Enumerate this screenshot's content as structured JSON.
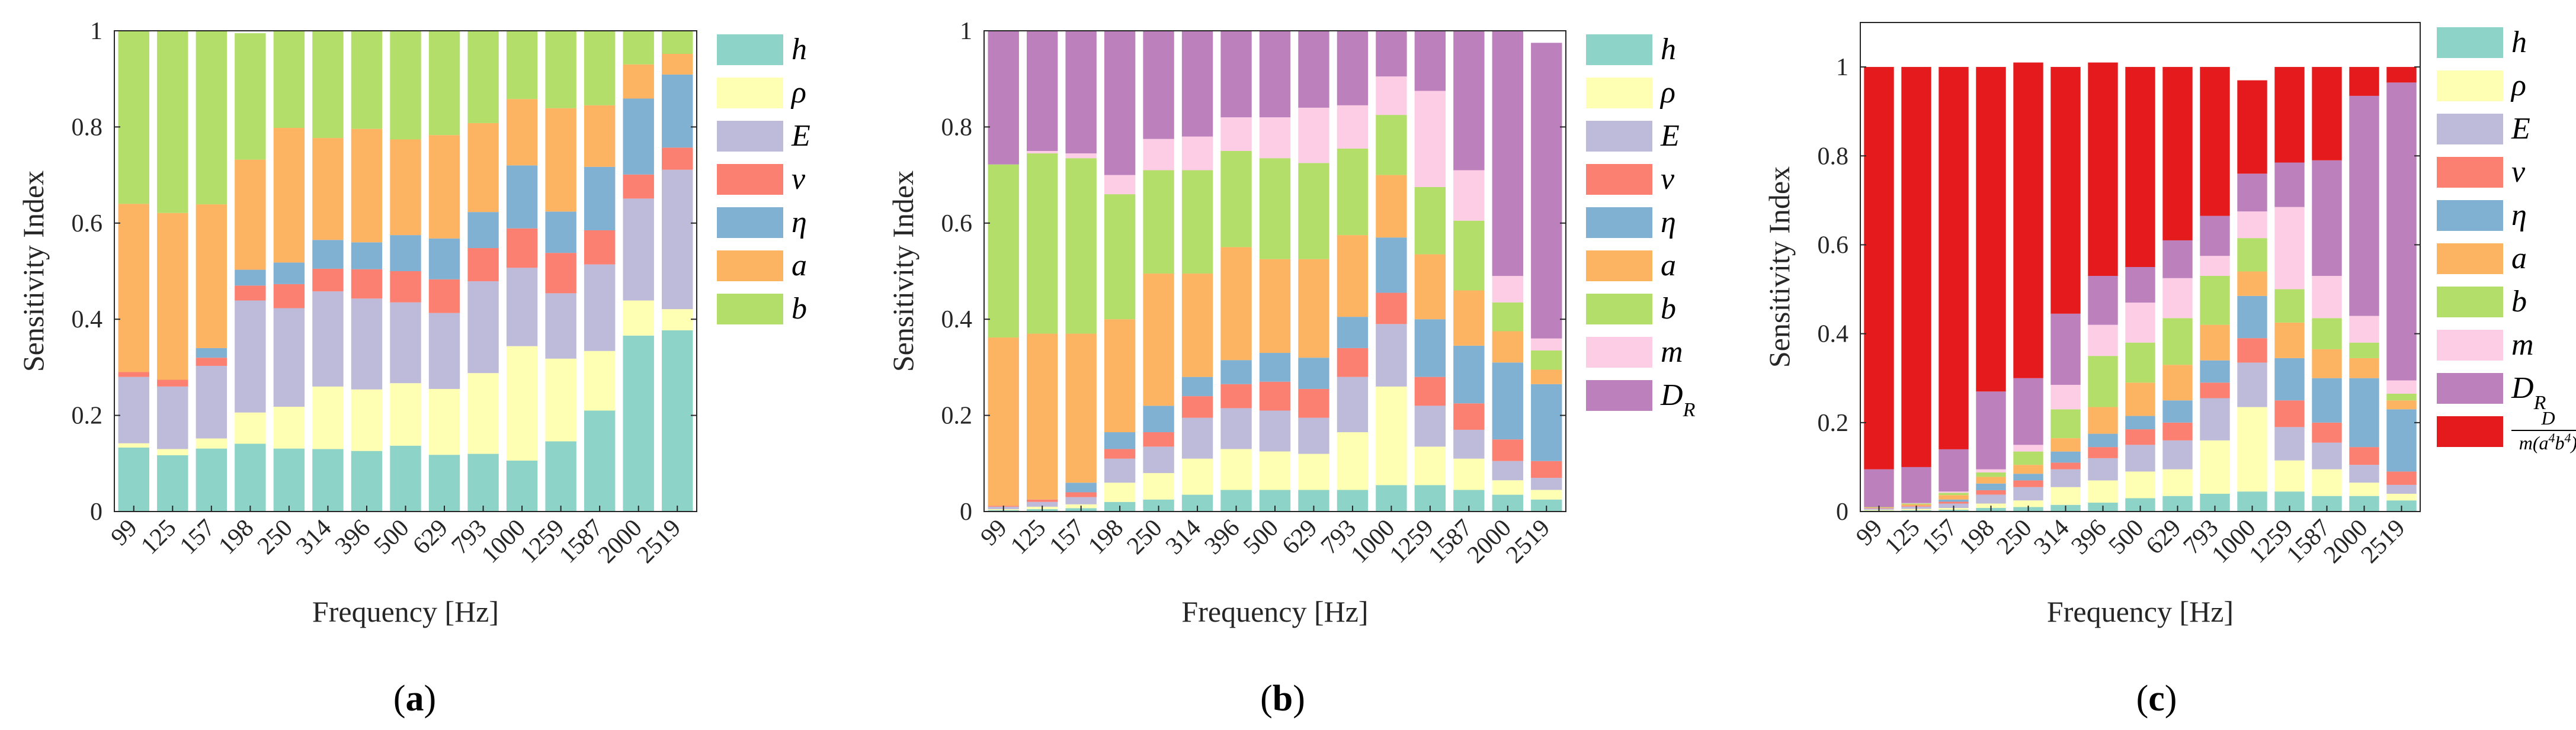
{
  "chart_data": [
    {
      "type": "bar",
      "stacked": true,
      "panel_label": "(a)",
      "title": "",
      "xlabel": "Frequency [Hz]",
      "ylabel": "Sensitivity Index",
      "ylim": [
        0,
        1
      ],
      "yticks": [
        0,
        0.2,
        0.4,
        0.6,
        0.8,
        1
      ],
      "ytick_labels": [
        "0",
        "0.2",
        "0.4",
        "0.6",
        "0.8",
        "1"
      ],
      "categories": [
        "99",
        "125",
        "157",
        "198",
        "250",
        "314",
        "396",
        "500",
        "629",
        "793",
        "1000",
        "1259",
        "1587",
        "2000",
        "2519"
      ],
      "series": [
        {
          "name": "h",
          "color": "#8dd3c7",
          "values": [
            0.133,
            0.117,
            0.131,
            0.141,
            0.131,
            0.13,
            0.126,
            0.137,
            0.118,
            0.12,
            0.106,
            0.146,
            0.21,
            0.366,
            0.377
          ]
        },
        {
          "name": "ρ",
          "color": "#ffffb3",
          "values": [
            0.009,
            0.013,
            0.021,
            0.065,
            0.087,
            0.13,
            0.128,
            0.13,
            0.137,
            0.168,
            0.238,
            0.172,
            0.124,
            0.073,
            0.044
          ]
        },
        {
          "name": "E",
          "color": "#bebada",
          "values": [
            0.138,
            0.13,
            0.151,
            0.233,
            0.205,
            0.198,
            0.189,
            0.168,
            0.158,
            0.191,
            0.163,
            0.136,
            0.18,
            0.212,
            0.29
          ]
        },
        {
          "name": "ν",
          "color": "#fb8072",
          "values": [
            0.01,
            0.014,
            0.017,
            0.031,
            0.05,
            0.047,
            0.061,
            0.065,
            0.07,
            0.069,
            0.082,
            0.084,
            0.071,
            0.05,
            0.046
          ]
        },
        {
          "name": "η",
          "color": "#80b1d3",
          "values": [
            0.0,
            0.0,
            0.02,
            0.033,
            0.045,
            0.06,
            0.056,
            0.075,
            0.085,
            0.075,
            0.131,
            0.086,
            0.132,
            0.158,
            0.152
          ]
        },
        {
          "name": "a",
          "color": "#fdb462",
          "values": [
            0.35,
            0.347,
            0.299,
            0.229,
            0.28,
            0.212,
            0.236,
            0.199,
            0.215,
            0.185,
            0.138,
            0.215,
            0.128,
            0.071,
            0.043
          ]
        },
        {
          "name": "b",
          "color": "#b3de69",
          "values": [
            0.36,
            0.379,
            0.361,
            0.263,
            0.202,
            0.223,
            0.204,
            0.226,
            0.217,
            0.192,
            0.142,
            0.161,
            0.155,
            0.07,
            0.048
          ]
        }
      ],
      "legend": [
        "h",
        "ρ",
        "E",
        "ν",
        "η",
        "a",
        "b"
      ],
      "legend_position": "outside-right"
    },
    {
      "type": "bar",
      "stacked": true,
      "panel_label": "(b)",
      "title": "",
      "xlabel": "Frequency [Hz]",
      "ylabel": "Sensitivity Index",
      "ylim": [
        0,
        1
      ],
      "yticks": [
        0,
        0.2,
        0.4,
        0.6,
        0.8,
        1
      ],
      "ytick_labels": [
        "0",
        "0.2",
        "0.4",
        "0.6",
        "0.8",
        "1"
      ],
      "categories": [
        "99",
        "125",
        "157",
        "198",
        "250",
        "314",
        "396",
        "500",
        "629",
        "793",
        "1000",
        "1259",
        "1587",
        "2000",
        "2519"
      ],
      "series": [
        {
          "name": "h",
          "color": "#8dd3c7",
          "values": [
            0.003,
            0.005,
            0.007,
            0.02,
            0.025,
            0.035,
            0.045,
            0.045,
            0.045,
            0.045,
            0.055,
            0.055,
            0.045,
            0.035,
            0.025
          ]
        },
        {
          "name": "ρ",
          "color": "#ffffb3",
          "values": [
            0.002,
            0.005,
            0.008,
            0.04,
            0.055,
            0.075,
            0.085,
            0.08,
            0.075,
            0.12,
            0.205,
            0.08,
            0.065,
            0.03,
            0.02
          ]
        },
        {
          "name": "E",
          "color": "#bebada",
          "values": [
            0.005,
            0.01,
            0.015,
            0.05,
            0.055,
            0.085,
            0.085,
            0.085,
            0.075,
            0.115,
            0.13,
            0.085,
            0.06,
            0.04,
            0.025
          ]
        },
        {
          "name": "ν",
          "color": "#fb8072",
          "values": [
            0.002,
            0.005,
            0.01,
            0.02,
            0.03,
            0.045,
            0.05,
            0.06,
            0.06,
            0.06,
            0.065,
            0.06,
            0.055,
            0.045,
            0.035
          ]
        },
        {
          "name": "η",
          "color": "#80b1d3",
          "values": [
            0.0,
            0.0,
            0.02,
            0.035,
            0.055,
            0.04,
            0.05,
            0.06,
            0.065,
            0.065,
            0.115,
            0.12,
            0.12,
            0.16,
            0.16
          ]
        },
        {
          "name": "a",
          "color": "#fdb462",
          "values": [
            0.35,
            0.345,
            0.31,
            0.235,
            0.275,
            0.215,
            0.235,
            0.195,
            0.205,
            0.17,
            0.13,
            0.135,
            0.115,
            0.065,
            0.03
          ]
        },
        {
          "name": "b",
          "color": "#b3de69",
          "values": [
            0.36,
            0.375,
            0.365,
            0.26,
            0.215,
            0.215,
            0.2,
            0.21,
            0.2,
            0.18,
            0.125,
            0.14,
            0.145,
            0.06,
            0.04
          ]
        },
        {
          "name": "m",
          "color": "#fccde5",
          "values": [
            0.0,
            0.005,
            0.01,
            0.04,
            0.065,
            0.07,
            0.07,
            0.085,
            0.115,
            0.09,
            0.08,
            0.2,
            0.105,
            0.055,
            0.025
          ]
        },
        {
          "name": "D_R",
          "color": "#bc80bd",
          "values": [
            0.278,
            0.25,
            0.255,
            0.3,
            0.225,
            0.22,
            0.18,
            0.18,
            0.16,
            0.155,
            0.095,
            0.125,
            0.29,
            0.51,
            0.615
          ]
        }
      ],
      "legend": [
        "h",
        "ρ",
        "E",
        "ν",
        "η",
        "a",
        "b",
        "m",
        "D_R"
      ],
      "legend_position": "outside-right"
    },
    {
      "type": "bar",
      "stacked": true,
      "panel_label": "(c)",
      "title": "",
      "xlabel": "Frequency [Hz]",
      "ylabel": "Sensitivity Index",
      "ylim": [
        0,
        1.1
      ],
      "yticks": [
        0,
        0.2,
        0.4,
        0.6,
        0.8,
        1
      ],
      "ytick_labels": [
        "0",
        "0.2",
        "0.4",
        "0.6",
        "0.8",
        "1"
      ],
      "categories": [
        "99",
        "125",
        "157",
        "198",
        "250",
        "314",
        "396",
        "500",
        "629",
        "793",
        "1000",
        "1259",
        "1587",
        "2000",
        "2519"
      ],
      "series": [
        {
          "name": "h",
          "color": "#8dd3c7",
          "values": [
            0.002,
            0.003,
            0.004,
            0.008,
            0.01,
            0.015,
            0.02,
            0.03,
            0.035,
            0.04,
            0.045,
            0.045,
            0.035,
            0.035,
            0.025
          ]
        },
        {
          "name": "ρ",
          "color": "#ffffb3",
          "values": [
            0.002,
            0.003,
            0.004,
            0.01,
            0.015,
            0.04,
            0.05,
            0.06,
            0.06,
            0.12,
            0.19,
            0.07,
            0.06,
            0.03,
            0.015
          ]
        },
        {
          "name": "E",
          "color": "#bebada",
          "values": [
            0.003,
            0.005,
            0.01,
            0.02,
            0.03,
            0.04,
            0.05,
            0.06,
            0.065,
            0.095,
            0.1,
            0.075,
            0.06,
            0.04,
            0.02
          ]
        },
        {
          "name": "ν",
          "color": "#fb8072",
          "values": [
            0.001,
            0.002,
            0.004,
            0.01,
            0.015,
            0.015,
            0.025,
            0.035,
            0.04,
            0.035,
            0.055,
            0.06,
            0.045,
            0.04,
            0.03
          ]
        },
        {
          "name": "η",
          "color": "#80b1d3",
          "values": [
            0.0,
            0.0,
            0.005,
            0.015,
            0.015,
            0.025,
            0.03,
            0.03,
            0.05,
            0.05,
            0.095,
            0.095,
            0.1,
            0.155,
            0.14
          ]
        },
        {
          "name": "a",
          "color": "#fdb462",
          "values": [
            0.001,
            0.003,
            0.01,
            0.015,
            0.02,
            0.03,
            0.06,
            0.075,
            0.08,
            0.08,
            0.055,
            0.08,
            0.065,
            0.045,
            0.02
          ]
        },
        {
          "name": "b",
          "color": "#b3de69",
          "values": [
            0.001,
            0.002,
            0.005,
            0.01,
            0.03,
            0.065,
            0.115,
            0.09,
            0.105,
            0.11,
            0.075,
            0.075,
            0.07,
            0.035,
            0.015
          ]
        },
        {
          "name": "m",
          "color": "#fccde5",
          "values": [
            0.0,
            0.001,
            0.003,
            0.007,
            0.015,
            0.055,
            0.07,
            0.09,
            0.09,
            0.045,
            0.06,
            0.185,
            0.095,
            0.06,
            0.03
          ]
        },
        {
          "name": "D_R",
          "color": "#bc80bd",
          "values": [
            0.085,
            0.081,
            0.095,
            0.175,
            0.15,
            0.16,
            0.11,
            0.08,
            0.085,
            0.09,
            0.085,
            0.1,
            0.26,
            0.495,
            0.67
          ]
        },
        {
          "name": "D/m(a^4b^4)",
          "color": "#e41a1c",
          "values": [
            0.905,
            0.9,
            0.86,
            0.73,
            0.71,
            0.555,
            0.48,
            0.45,
            0.39,
            0.335,
            0.21,
            0.215,
            0.21,
            0.065,
            0.035
          ]
        }
      ],
      "legend": [
        "h",
        "ρ",
        "E",
        "ν",
        "η",
        "a",
        "b",
        "m",
        "D_R",
        "D/m(a^4b^4)"
      ],
      "legend_position": "outside-right"
    }
  ]
}
